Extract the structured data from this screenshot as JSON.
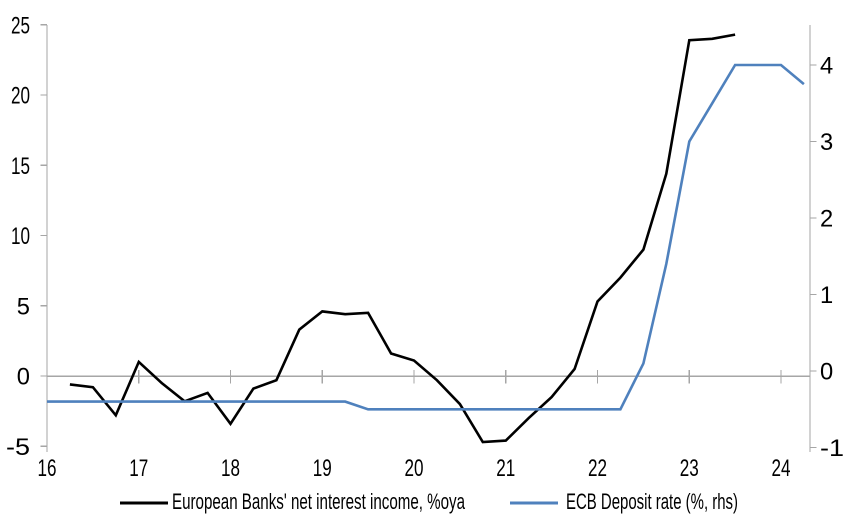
{
  "chart_data": {
    "type": "line",
    "title": "",
    "legend_position": "bottom",
    "grid": false,
    "x_axis": {
      "ticks": [
        16,
        17,
        18,
        19,
        20,
        21,
        22,
        23,
        24
      ],
      "labels": [
        "16",
        "17",
        "18",
        "19",
        "20",
        "21",
        "22",
        "23",
        "24"
      ],
      "range": [
        16,
        24.32
      ]
    },
    "left_axis": {
      "ticks": [
        25,
        20,
        15,
        10,
        5,
        0,
        -5
      ],
      "labels": [
        "25",
        "20",
        "15",
        "10",
        "5",
        "0",
        "-5"
      ],
      "range": [
        -5.4,
        25
      ]
    },
    "right_axis": {
      "ticks": [
        4,
        3,
        2,
        1,
        0,
        -1
      ],
      "labels": [
        "4",
        "3",
        "2",
        "1",
        "0",
        "-1"
      ],
      "range": [
        -1.06,
        4.52
      ]
    },
    "series": [
      {
        "name": "European Banks' net interest income, %oya",
        "color": "#000000",
        "axis": "left",
        "x": [
          16.25,
          16.5,
          16.75,
          17,
          17.25,
          17.5,
          17.75,
          18,
          18.25,
          18.5,
          18.75,
          19,
          19.25,
          19.5,
          19.75,
          20,
          20.25,
          20.5,
          20.75,
          21,
          21.25,
          21.5,
          21.75,
          22,
          22.25,
          22.5,
          22.75,
          23,
          23.25,
          23.5
        ],
        "values": [
          -0.6,
          -0.8,
          -2.8,
          1.0,
          -0.5,
          -1.8,
          -1.2,
          -3.4,
          -0.9,
          -0.3,
          3.3,
          4.6,
          4.4,
          4.5,
          1.6,
          1.1,
          -0.3,
          -2.0,
          -4.7,
          -4.6,
          -3.0,
          -1.5,
          0.5,
          5.3,
          7.0,
          9.0,
          14.4,
          23.9,
          24.0,
          24.3
        ]
      },
      {
        "name": "ECB Deposit rate (%, rhs)",
        "color": "#4F81BD",
        "axis": "right",
        "x": [
          16,
          16.25,
          16.5,
          16.75,
          17,
          17.25,
          17.5,
          17.75,
          18,
          18.25,
          18.5,
          18.75,
          19,
          19.25,
          19.5,
          19.75,
          20,
          20.25,
          20.5,
          20.75,
          21,
          21.25,
          21.5,
          21.75,
          22,
          22.25,
          22.5,
          22.75,
          23,
          23.25,
          23.5,
          23.75,
          24,
          24.25
        ],
        "values": [
          -0.4,
          -0.4,
          -0.4,
          -0.4,
          -0.4,
          -0.4,
          -0.4,
          -0.4,
          -0.4,
          -0.4,
          -0.4,
          -0.4,
          -0.4,
          -0.4,
          -0.5,
          -0.5,
          -0.5,
          -0.5,
          -0.5,
          -0.5,
          -0.5,
          -0.5,
          -0.5,
          -0.5,
          -0.5,
          -0.5,
          0.1,
          1.4,
          3.0,
          3.5,
          4.0,
          4.0,
          4.0,
          3.75
        ]
      }
    ]
  },
  "legend": {
    "items": [
      {
        "label": "European Banks' net interest income, %oya",
        "color": "#000000"
      },
      {
        "label": "ECB Deposit rate (%, rhs)",
        "color": "#4F81BD"
      }
    ]
  },
  "colors": {
    "axis": "#A6A6A6",
    "zero_line": "#A6A6A6",
    "label": "#000000",
    "background": "#FFFFFF"
  }
}
